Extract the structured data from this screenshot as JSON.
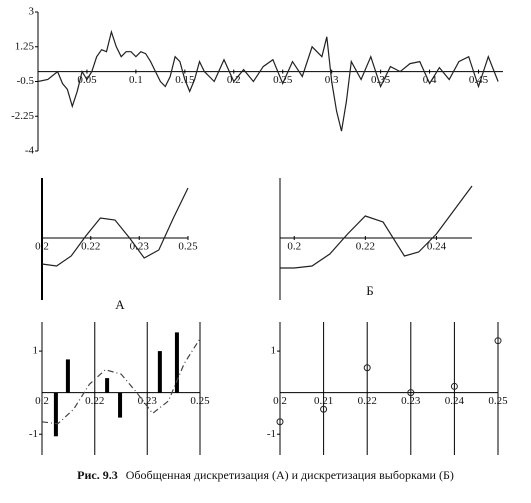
{
  "chart_data": [
    {
      "type": "line",
      "xlim": [
        0,
        0.475
      ],
      "ylim": [
        -4,
        3
      ],
      "yticks": [
        -4,
        -2.25,
        -0.5,
        1.25,
        3
      ],
      "xticks": [
        0.05,
        0.1,
        0.15,
        0.2,
        0.25,
        0.3,
        0.35,
        0.4,
        0.45
      ],
      "series": [
        {
          "color": "#222222",
          "x": [
            0,
            0.01,
            0.02,
            0.025,
            0.03,
            0.035,
            0.04,
            0.045,
            0.05,
            0.055,
            0.06,
            0.065,
            0.07,
            0.075,
            0.08,
            0.085,
            0.09,
            0.095,
            0.1,
            0.105,
            0.11,
            0.115,
            0.12,
            0.125,
            0.13,
            0.135,
            0.14,
            0.145,
            0.15,
            0.155,
            0.16,
            0.165,
            0.17,
            0.175,
            0.18,
            0.19,
            0.2,
            0.21,
            0.22,
            0.23,
            0.24,
            0.25,
            0.26,
            0.27,
            0.28,
            0.29,
            0.295,
            0.3,
            0.305,
            0.31,
            0.315,
            0.32,
            0.33,
            0.34,
            0.35,
            0.36,
            0.37,
            0.38,
            0.39,
            0.4,
            0.41,
            0.42,
            0.43,
            0.44,
            0.45,
            0.46,
            0.47
          ],
          "values": [
            -0.5,
            -0.4,
            0,
            -0.6,
            -0.9,
            -1.75,
            -1,
            0,
            -0.4,
            0,
            0.75,
            1.1,
            1,
            2,
            1.25,
            0.75,
            1,
            1,
            0.75,
            1,
            0.9,
            0.5,
            0,
            -0.5,
            -0.75,
            -0.25,
            0.75,
            0.5,
            -0.4,
            -1,
            -0.4,
            0.5,
            0,
            -0.25,
            -0.5,
            0.6,
            -0.5,
            0.1,
            -0.5,
            0.25,
            0.6,
            -0.6,
            0.5,
            -0.25,
            1.25,
            0.75,
            1.75,
            -0.5,
            -2,
            -3,
            -1.5,
            0.5,
            -0.4,
            0.75,
            -0.75,
            0.25,
            0,
            0.4,
            0.5,
            -0.6,
            0.2,
            -0.4,
            0.5,
            0.75,
            -0.75,
            0.75,
            -0.5
          ]
        }
      ]
    },
    {
      "type": "line",
      "label": "А",
      "xlim": [
        0.2,
        0.25
      ],
      "ylim": [
        -1.55,
        1.5
      ],
      "xticks": [
        0.2,
        {
          "value": 0.2167,
          "label": "0.22"
        },
        {
          "value": 0.2333,
          "label": "0.23"
        },
        0.25
      ],
      "series": [
        {
          "color": "#222222",
          "x": [
            0.2,
            0.205,
            0.21,
            0.215,
            0.22,
            0.225,
            0.23,
            0.235,
            0.24,
            0.245,
            0.25
          ],
          "values": [
            -0.65,
            -0.7,
            -0.45,
            0.05,
            0.5,
            0.45,
            0,
            -0.5,
            -0.3,
            0.5,
            1.25
          ]
        }
      ]
    },
    {
      "type": "line",
      "label": "Б",
      "xlim": [
        0.196,
        0.25
      ],
      "ylim": [
        -1.55,
        1.5
      ],
      "xticks": [
        0.2,
        0.22,
        0.24
      ],
      "series": [
        {
          "color": "#222222",
          "x": [
            0.196,
            0.2,
            0.205,
            0.21,
            0.215,
            0.22,
            0.225,
            0.231,
            0.235,
            0.24,
            0.245,
            0.25
          ],
          "values": [
            -0.75,
            -0.75,
            -0.7,
            -0.4,
            0.1,
            0.55,
            0.4,
            -0.45,
            -0.35,
            0.1,
            0.7,
            1.3
          ]
        }
      ]
    },
    {
      "type": "bar",
      "xlim": [
        0.2,
        0.25
      ],
      "ylim": [
        -1.5,
        1.7
      ],
      "yticks": [
        -1,
        1
      ],
      "grid": true,
      "xticks": [
        0.2,
        {
          "value": 0.2167,
          "label": "0.22"
        },
        {
          "value": 0.2333,
          "label": "0.23"
        },
        0.25
      ],
      "series": [
        {
          "type": "bar",
          "color": "#000000",
          "x": [
            0.2044,
            0.2082,
            0.2206,
            0.2247,
            0.2373,
            0.2427
          ],
          "values": [
            -1.05,
            0.8,
            0.35,
            -0.6,
            1,
            1.45
          ]
        },
        {
          "type": "line",
          "dashed": true,
          "color": "#444444",
          "x": [
            0.2,
            0.205,
            0.21,
            0.215,
            0.22,
            0.225,
            0.23,
            0.235,
            0.24,
            0.245,
            0.25
          ],
          "values": [
            -0.7,
            -0.75,
            -0.4,
            0.2,
            0.55,
            0.45,
            0,
            -0.5,
            -0.2,
            0.7,
            1.3
          ]
        }
      ]
    },
    {
      "type": "scatter",
      "xlim": [
        0.2,
        0.25
      ],
      "ylim": [
        -1.5,
        1.7
      ],
      "yticks": [
        -1,
        1
      ],
      "grid": true,
      "xticks": [
        0.2,
        0.21,
        0.22,
        0.23,
        0.24,
        0.25
      ],
      "series": [
        {
          "color": "#222222",
          "x": [
            0.2,
            0.21,
            0.22,
            0.23,
            0.24,
            0.25
          ],
          "values": [
            -0.7,
            -0.4,
            0.6,
            0,
            0.15,
            1.25
          ]
        }
      ]
    }
  ],
  "caption": {
    "label": "Рис. 9.3",
    "text": "Обобщенная дискретизация (А) и дискретизация выборками (Б)"
  }
}
